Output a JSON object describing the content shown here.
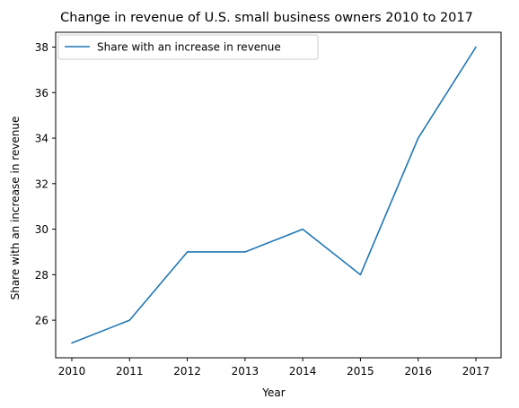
{
  "chart_data": {
    "type": "line",
    "title": "Change in revenue of U.S. small business owners 2010 to 2017",
    "xlabel": "Year",
    "ylabel": "Share with an increase in revenue",
    "x": [
      "2010",
      "2011",
      "2012",
      "2013",
      "2014",
      "2015",
      "2016",
      "2017"
    ],
    "series": [
      {
        "name": "Share with an increase in revenue",
        "values": [
          25,
          26,
          29,
          29,
          30,
          28,
          34,
          38
        ],
        "color": "#1f77b4"
      }
    ],
    "ylim": [
      24.35,
      38.65
    ],
    "yticks": [
      26,
      28,
      30,
      32,
      34,
      36,
      38
    ],
    "grid": false,
    "legend": "top-left"
  }
}
